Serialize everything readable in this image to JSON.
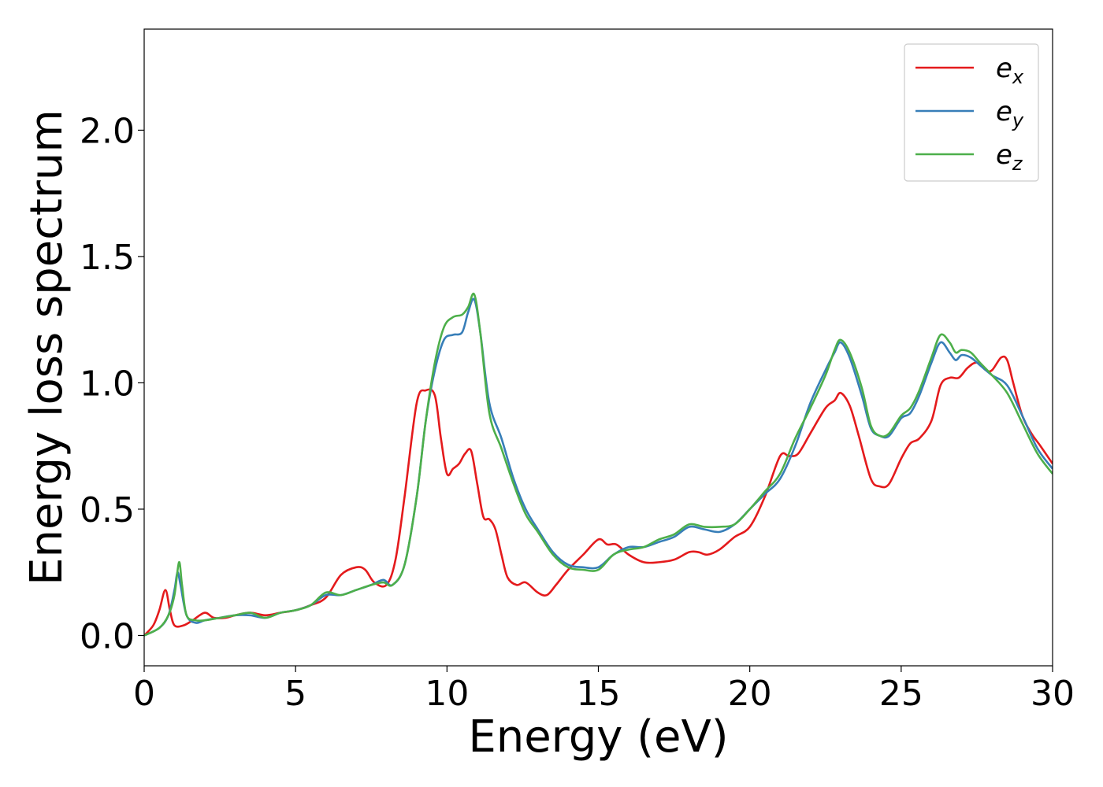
{
  "chart_data": {
    "type": "line",
    "title": "",
    "xlabel": "Energy (eV)",
    "ylabel": "Energy loss spectrum",
    "xlim": [
      0,
      30
    ],
    "ylim": [
      -0.12,
      2.4
    ],
    "xticks": [
      0,
      5,
      10,
      15,
      20,
      25,
      30
    ],
    "xtick_labels": [
      "0",
      "5",
      "10",
      "15",
      "20",
      "25",
      "30"
    ],
    "yticks": [
      0.0,
      0.5,
      1.0,
      1.5,
      2.0
    ],
    "ytick_labels": [
      "0.0",
      "0.5",
      "1.0",
      "1.5",
      "2.0"
    ],
    "grid": false,
    "legend": {
      "position": "top-right"
    },
    "series": [
      {
        "name": "e",
        "subscript": "x",
        "color": "#e41a1c",
        "x": [
          0,
          0.3,
          0.5,
          0.7,
          0.85,
          1.0,
          1.3,
          1.6,
          2.0,
          2.3,
          2.7,
          3.0,
          3.5,
          4.0,
          4.5,
          5.0,
          5.5,
          6.0,
          6.5,
          7.0,
          7.3,
          7.6,
          8.0,
          8.3,
          8.6,
          9.0,
          9.3,
          9.6,
          9.8,
          10.0,
          10.2,
          10.4,
          10.6,
          10.8,
          11.0,
          11.2,
          11.4,
          11.6,
          11.8,
          12.0,
          12.3,
          12.6,
          13.0,
          13.3,
          13.6,
          14.0,
          14.5,
          15.0,
          15.3,
          15.6,
          16.0,
          16.5,
          17.0,
          17.5,
          18.0,
          18.3,
          18.6,
          19.0,
          19.5,
          20.0,
          20.5,
          21.0,
          21.3,
          21.6,
          22.0,
          22.5,
          22.8,
          23.0,
          23.3,
          23.6,
          24.0,
          24.3,
          24.6,
          25.0,
          25.3,
          25.6,
          26.0,
          26.3,
          26.6,
          26.9,
          27.2,
          27.5,
          27.8,
          28.0,
          28.3,
          28.5,
          28.7,
          29.0,
          29.3,
          29.6,
          30.0
        ],
        "y": [
          0.0,
          0.04,
          0.1,
          0.18,
          0.1,
          0.04,
          0.04,
          0.06,
          0.09,
          0.07,
          0.07,
          0.08,
          0.09,
          0.08,
          0.09,
          0.1,
          0.12,
          0.15,
          0.24,
          0.27,
          0.26,
          0.21,
          0.2,
          0.3,
          0.55,
          0.92,
          0.97,
          0.95,
          0.78,
          0.64,
          0.66,
          0.68,
          0.72,
          0.73,
          0.6,
          0.47,
          0.46,
          0.42,
          0.32,
          0.23,
          0.2,
          0.21,
          0.17,
          0.16,
          0.2,
          0.26,
          0.32,
          0.38,
          0.36,
          0.36,
          0.32,
          0.29,
          0.29,
          0.3,
          0.33,
          0.33,
          0.32,
          0.34,
          0.39,
          0.43,
          0.55,
          0.71,
          0.71,
          0.72,
          0.8,
          0.9,
          0.93,
          0.96,
          0.91,
          0.79,
          0.62,
          0.59,
          0.6,
          0.7,
          0.76,
          0.78,
          0.85,
          0.99,
          1.02,
          1.02,
          1.06,
          1.08,
          1.05,
          1.05,
          1.1,
          1.09,
          1.0,
          0.87,
          0.8,
          0.75,
          0.68
        ]
      },
      {
        "name": "e",
        "subscript": "y",
        "color": "#377eb8",
        "x": [
          0,
          0.5,
          0.8,
          1.0,
          1.1,
          1.2,
          1.4,
          1.7,
          2.0,
          2.5,
          3.0,
          3.5,
          4.0,
          4.5,
          5.0,
          5.5,
          6.0,
          6.5,
          7.0,
          7.5,
          7.9,
          8.2,
          8.6,
          9.0,
          9.3,
          9.6,
          9.9,
          10.2,
          10.5,
          10.7,
          10.9,
          11.1,
          11.4,
          11.8,
          12.2,
          12.6,
          13.0,
          13.5,
          14.0,
          14.5,
          15.0,
          15.5,
          16.0,
          16.5,
          17.0,
          17.5,
          18.0,
          18.5,
          19.0,
          19.5,
          20.0,
          20.5,
          21.0,
          21.5,
          22.0,
          22.5,
          22.8,
          23.0,
          23.3,
          23.7,
          24.0,
          24.3,
          24.6,
          25.0,
          25.3,
          25.6,
          26.0,
          26.3,
          26.6,
          26.8,
          27.0,
          27.3,
          27.6,
          28.0,
          28.5,
          29.0,
          29.5,
          30.0
        ],
        "y": [
          0.0,
          0.03,
          0.08,
          0.18,
          0.25,
          0.2,
          0.08,
          0.05,
          0.06,
          0.07,
          0.08,
          0.08,
          0.07,
          0.09,
          0.1,
          0.12,
          0.16,
          0.16,
          0.18,
          0.2,
          0.22,
          0.2,
          0.28,
          0.55,
          0.85,
          1.05,
          1.17,
          1.19,
          1.2,
          1.28,
          1.33,
          1.2,
          0.92,
          0.78,
          0.62,
          0.5,
          0.42,
          0.33,
          0.28,
          0.27,
          0.27,
          0.32,
          0.35,
          0.35,
          0.37,
          0.39,
          0.43,
          0.42,
          0.41,
          0.44,
          0.5,
          0.56,
          0.62,
          0.75,
          0.92,
          1.05,
          1.12,
          1.16,
          1.1,
          0.95,
          0.82,
          0.79,
          0.79,
          0.86,
          0.88,
          0.95,
          1.08,
          1.16,
          1.12,
          1.09,
          1.11,
          1.1,
          1.07,
          1.03,
          0.99,
          0.87,
          0.74,
          0.66
        ]
      },
      {
        "name": "e",
        "subscript": "z",
        "color": "#4daf4a",
        "x": [
          0,
          0.5,
          0.8,
          1.0,
          1.15,
          1.25,
          1.4,
          1.7,
          2.0,
          2.5,
          3.0,
          3.5,
          4.0,
          4.5,
          5.0,
          5.5,
          6.0,
          6.5,
          7.0,
          7.5,
          7.9,
          8.2,
          8.6,
          9.0,
          9.3,
          9.6,
          9.9,
          10.2,
          10.5,
          10.7,
          10.9,
          11.1,
          11.4,
          11.8,
          12.2,
          12.6,
          13.0,
          13.5,
          14.0,
          14.5,
          15.0,
          15.5,
          16.0,
          16.5,
          17.0,
          17.5,
          18.0,
          18.5,
          19.0,
          19.5,
          20.0,
          20.5,
          21.0,
          21.5,
          22.0,
          22.5,
          22.8,
          23.0,
          23.3,
          23.7,
          24.0,
          24.3,
          24.6,
          25.0,
          25.3,
          25.6,
          26.0,
          26.3,
          26.6,
          26.8,
          27.0,
          27.3,
          27.6,
          28.0,
          28.5,
          29.0,
          29.5,
          30.0
        ],
        "y": [
          0.0,
          0.03,
          0.08,
          0.16,
          0.29,
          0.2,
          0.08,
          0.06,
          0.06,
          0.07,
          0.08,
          0.09,
          0.07,
          0.09,
          0.1,
          0.12,
          0.17,
          0.16,
          0.18,
          0.2,
          0.21,
          0.2,
          0.28,
          0.55,
          0.85,
          1.08,
          1.22,
          1.26,
          1.27,
          1.3,
          1.35,
          1.2,
          0.88,
          0.74,
          0.6,
          0.48,
          0.41,
          0.32,
          0.27,
          0.26,
          0.26,
          0.32,
          0.34,
          0.35,
          0.38,
          0.4,
          0.44,
          0.43,
          0.43,
          0.44,
          0.5,
          0.57,
          0.64,
          0.78,
          0.9,
          1.03,
          1.13,
          1.17,
          1.12,
          0.98,
          0.83,
          0.79,
          0.8,
          0.87,
          0.9,
          0.97,
          1.1,
          1.19,
          1.16,
          1.12,
          1.13,
          1.12,
          1.08,
          1.03,
          0.96,
          0.84,
          0.72,
          0.64
        ]
      }
    ]
  }
}
